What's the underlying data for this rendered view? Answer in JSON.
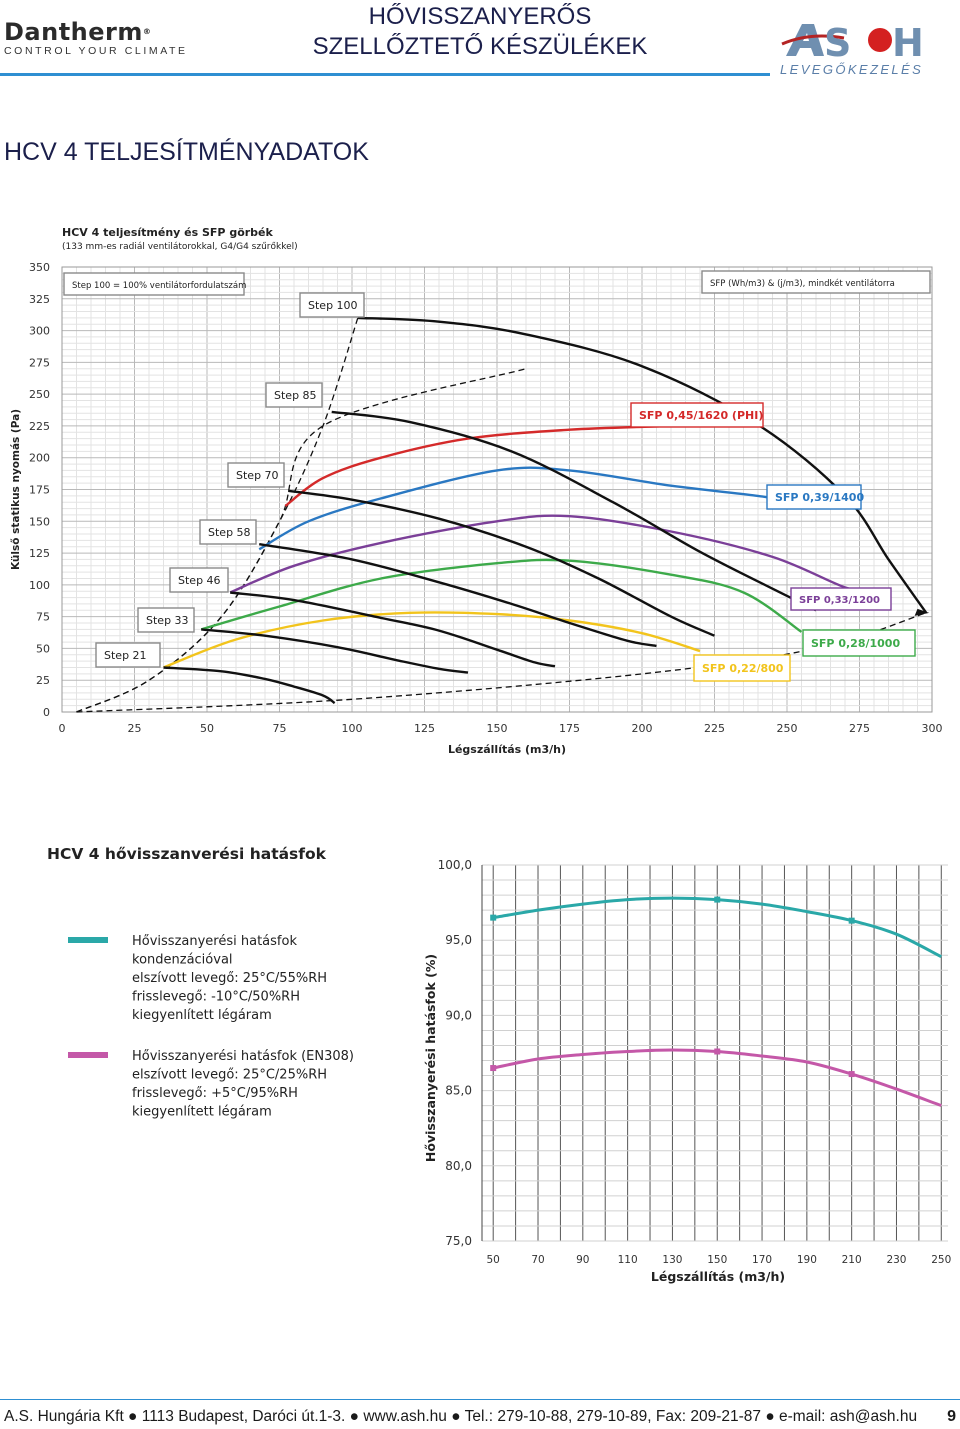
{
  "header": {
    "left_logo": {
      "brand": "Dantherm",
      "tagline": "CONTROL YOUR CLIMATE"
    },
    "title_line1": "HŐVISSZANYERŐS",
    "title_line2": "SZELLŐZTETŐ KÉSZÜLÉKEK",
    "right_logo": {
      "brand": "ASH",
      "tagline": "LEVEGŐKEZELÉS"
    },
    "accent_color": "#2e8fd2"
  },
  "section_title": "HCV 4 TELJESÍTMÉNYADATOK",
  "chart_data": [
    {
      "type": "line",
      "title": "HCV 4 teljesítmény és SFP görbék",
      "subtitle": "(133 mm-es radiál ventilátorokkal, G4/G4 szűrőkkel)",
      "xlabel": "Légszállítás (m3/h)",
      "ylabel": "Külső statikus nyomás (Pa)",
      "xlim": [
        0,
        300
      ],
      "ylim": [
        0,
        350
      ],
      "x_ticks": [
        0,
        25,
        50,
        75,
        100,
        125,
        150,
        175,
        200,
        225,
        250,
        275,
        300
      ],
      "y_ticks": [
        0,
        25,
        50,
        75,
        100,
        125,
        150,
        175,
        200,
        225,
        250,
        275,
        300,
        325,
        350
      ],
      "grid": true,
      "note_left": "Step 100 = 100% ventilátorfordulatszám",
      "note_right": "SFP (Wh/m3) & (j/m3), mindkét ventilátorra",
      "step_curves": [
        {
          "name": "Step 100",
          "points": [
            [
              102,
              310
            ],
            [
              130,
              307
            ],
            [
              160,
              297
            ],
            [
              200,
              272
            ],
            [
              240,
              226
            ],
            [
              270,
              170
            ],
            [
              285,
              120
            ],
            [
              298,
              78
            ]
          ]
        },
        {
          "name": "Step 85",
          "points": [
            [
              93,
              236
            ],
            [
              120,
              228
            ],
            [
              155,
              205
            ],
            [
              190,
              165
            ],
            [
              220,
              126
            ],
            [
              245,
              97
            ],
            [
              260,
              80
            ]
          ]
        },
        {
          "name": "Step 70",
          "points": [
            [
              78,
              174
            ],
            [
              100,
              167
            ],
            [
              130,
              152
            ],
            [
              160,
              130
            ],
            [
              185,
              105
            ],
            [
              210,
              75
            ],
            [
              225,
              60
            ]
          ]
        },
        {
          "name": "Step 58",
          "points": [
            [
              68,
              132
            ],
            [
              100,
              120
            ],
            [
              130,
              102
            ],
            [
              155,
              85
            ],
            [
              175,
              70
            ],
            [
              195,
              56
            ],
            [
              205,
              52
            ]
          ]
        },
        {
          "name": "Step 46",
          "points": [
            [
              58,
              94
            ],
            [
              80,
              88
            ],
            [
              110,
              74
            ],
            [
              130,
              64
            ],
            [
              150,
              49
            ],
            [
              163,
              39
            ],
            [
              170,
              36
            ]
          ]
        },
        {
          "name": "Step 33",
          "points": [
            [
              48,
              65
            ],
            [
              70,
              60
            ],
            [
              95,
              51
            ],
            [
              115,
              41
            ],
            [
              130,
              34
            ],
            [
              140,
              31
            ]
          ]
        },
        {
          "name": "Step 21",
          "points": [
            [
              35,
              35
            ],
            [
              55,
              32
            ],
            [
              70,
              26
            ],
            [
              80,
              20
            ],
            [
              90,
              13
            ],
            [
              94,
              7
            ]
          ]
        }
      ],
      "system_curves": [
        {
          "name": "Step 100",
          "points": [
            [
              5,
              0
            ],
            [
              30,
              25
            ],
            [
              55,
              75
            ],
            [
              75,
              150
            ],
            [
              90,
              225
            ],
            [
              102,
              310
            ]
          ]
        },
        {
          "name": "Step 85",
          "points": [
            [
              5,
              0
            ],
            [
              30,
              25
            ],
            [
              55,
              75
            ],
            [
              75,
              150
            ],
            [
              90,
              225
            ],
            [
              160,
              270
            ]
          ]
        },
        {
          "name": "SFP 0,33/1200",
          "points": [
            [
              5,
              0
            ],
            [
              100,
              10
            ],
            [
              200,
              30
            ],
            [
              260,
              50
            ],
            [
              298,
              78
            ]
          ]
        }
      ],
      "sfp_curves": [
        {
          "name": "SFP 0,45/1620 (PHI)",
          "color": "#d42a2a",
          "points": [
            [
              77,
              162
            ],
            [
              90,
              184
            ],
            [
              110,
              200
            ],
            [
              140,
              215
            ],
            [
              175,
              222
            ],
            [
              210,
              225
            ]
          ]
        },
        {
          "name": "SFP 0,39/1400",
          "color": "#2a78c2",
          "points": [
            [
              68,
              128
            ],
            [
              85,
              150
            ],
            [
              110,
              168
            ],
            [
              150,
              190
            ],
            [
              175,
              190
            ],
            [
              210,
              178
            ],
            [
              240,
              170
            ],
            [
              247,
              167
            ]
          ]
        },
        {
          "name": "SFP 0,33/1200",
          "color": "#7b3f98",
          "points": [
            [
              58,
              94
            ],
            [
              80,
              115
            ],
            [
              110,
              133
            ],
            [
              150,
              150
            ],
            [
              175,
              154
            ],
            [
              210,
              142
            ],
            [
              245,
              122
            ],
            [
              270,
              98
            ],
            [
              280,
              94
            ]
          ]
        },
        {
          "name": "SFP 0,28/1000",
          "color": "#3daa4a",
          "points": [
            [
              48,
              65
            ],
            [
              75,
              83
            ],
            [
              110,
              105
            ],
            [
              150,
              117
            ],
            [
              175,
              119
            ],
            [
              210,
              108
            ],
            [
              235,
              94
            ],
            [
              255,
              63
            ]
          ]
        },
        {
          "name": "SFP 0,22/800",
          "color": "#f2c41c",
          "points": [
            [
              35,
              35
            ],
            [
              60,
              57
            ],
            [
              90,
              72
            ],
            [
              120,
              78
            ],
            [
              150,
              77
            ],
            [
              175,
              72
            ],
            [
              200,
              62
            ],
            [
              220,
              48
            ]
          ]
        }
      ]
    },
    {
      "type": "line",
      "title": "HCV 4 hővisszanverési hatásfok",
      "xlabel": "Légszállítás (m3/h)",
      "ylabel": "Hővisszanyerési hatásfok (%)",
      "xlim": [
        50,
        250
      ],
      "ylim": [
        75,
        100
      ],
      "x_ticks": [
        50,
        70,
        90,
        110,
        130,
        150,
        170,
        190,
        210,
        230,
        250
      ],
      "y_ticks": [
        "75,0",
        "80,0",
        "85,0",
        "90,0",
        "95,0",
        "100,0"
      ],
      "grid": true,
      "series": [
        {
          "name": "Hővisszanyerési hatásfok kondenzációval",
          "legend_lines": [
            "Hővisszanyerési hatásfok",
            "kondenzációval",
            "elszívott levegő: 25°C/55%RH",
            "frisslevegő: -10°C/50%RH",
            "kiegyenlített légáram"
          ],
          "color": "#2aa8a8",
          "x": [
            50,
            70,
            90,
            110,
            130,
            150,
            170,
            190,
            210,
            230,
            250
          ],
          "values": [
            96.5,
            97.0,
            97.4,
            97.7,
            97.8,
            97.7,
            97.4,
            96.9,
            96.3,
            95.4,
            93.9
          ]
        },
        {
          "name": "Hővisszanyerési hatásfok (EN308)",
          "legend_lines": [
            "Hővisszanyerési hatásfok (EN308)",
            "elszívott levegő: 25°C/25%RH",
            "frisslevegő: +5°C/95%RH",
            "kiegyenlített légáram"
          ],
          "color": "#c458a8",
          "x": [
            50,
            70,
            90,
            110,
            130,
            150,
            170,
            190,
            210,
            230,
            250
          ],
          "values": [
            86.5,
            87.1,
            87.4,
            87.6,
            87.7,
            87.6,
            87.3,
            86.9,
            86.1,
            85.1,
            84.0
          ]
        }
      ]
    }
  ],
  "footer": {
    "text": "A.S. Hungária Kft ● 1113 Budapest, Daróci út.1-3. ● www.ash.hu ● Tel.: 279-10-88, 279-10-89, Fax: 209-21-87 ● e-mail: ash@ash.hu",
    "page_number": "9"
  }
}
